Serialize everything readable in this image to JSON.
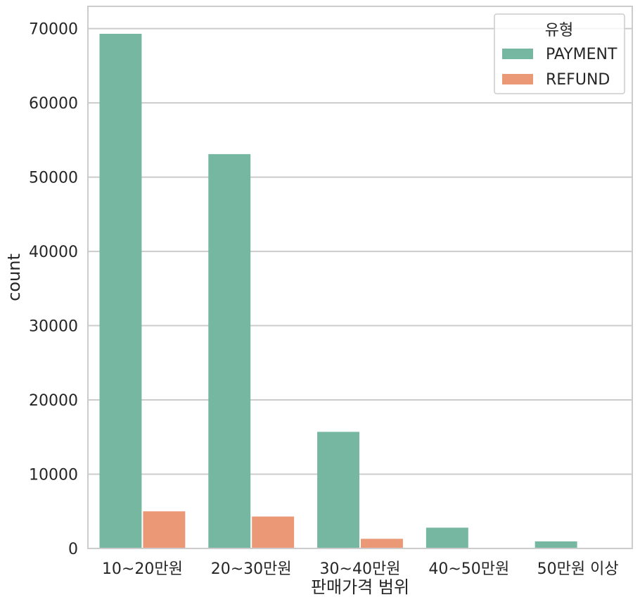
{
  "chart_data": {
    "type": "bar",
    "title": "",
    "xlabel": "판매가격 범위",
    "ylabel": "count",
    "categories": [
      "10~20만원",
      "20~30만원",
      "30~40만원",
      "40~50만원",
      "50만원 이상"
    ],
    "series": [
      {
        "name": "PAYMENT",
        "values": [
          69300,
          53100,
          15700,
          2800,
          950
        ],
        "color": "#75b7a0"
      },
      {
        "name": "REFUND",
        "values": [
          5000,
          4300,
          1300,
          80,
          50
        ],
        "color": "#ea9875"
      }
    ],
    "ylim": [
      0,
      73000
    ],
    "yticks": [
      0,
      10000,
      20000,
      30000,
      40000,
      50000,
      60000,
      70000
    ],
    "grid": "horizontal",
    "legend": {
      "title": "유형",
      "placement": "top-right"
    }
  }
}
